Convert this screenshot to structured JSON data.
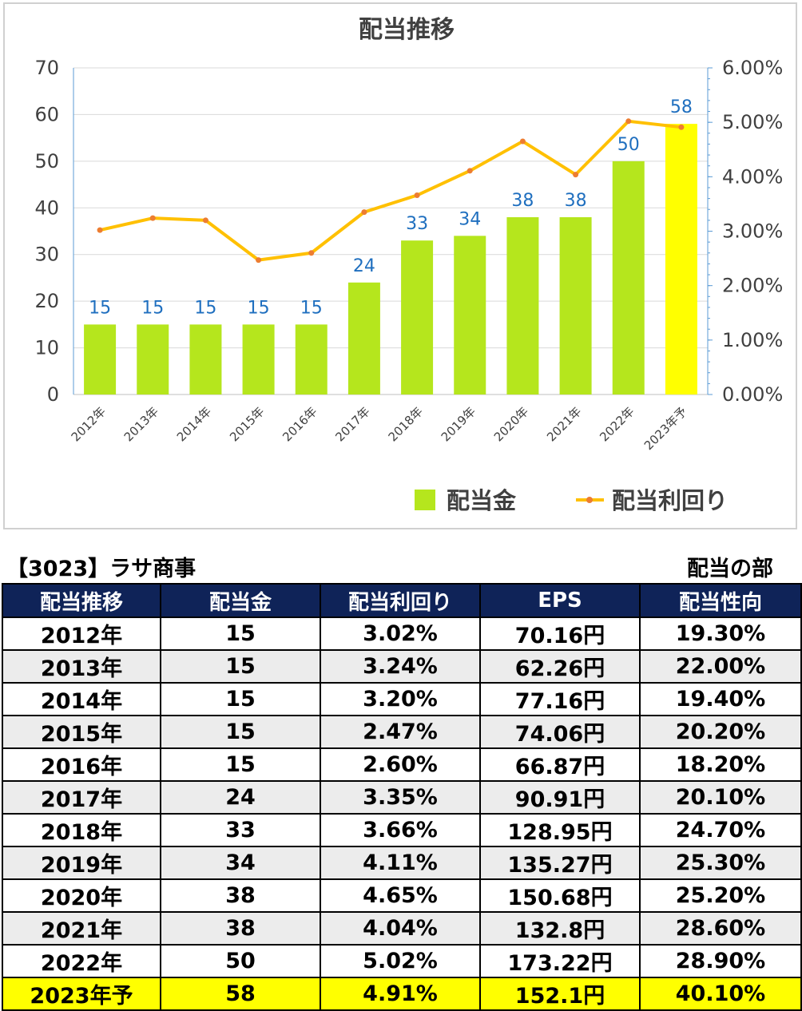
{
  "chart_data": {
    "type": "bar",
    "title": "配当推移",
    "categories": [
      "2012年",
      "2013年",
      "2014年",
      "2015年",
      "2016年",
      "2017年",
      "2018年",
      "2019年",
      "2020年",
      "2021年",
      "2022年",
      "2023年予"
    ],
    "series": [
      {
        "name": "配当金",
        "type": "bar",
        "axis": "left",
        "values": [
          15,
          15,
          15,
          15,
          15,
          24,
          33,
          34,
          38,
          38,
          50,
          58
        ],
        "color": "#b5e61d",
        "highlight_color": "#ffff00"
      },
      {
        "name": "配当利回り",
        "type": "line",
        "axis": "right",
        "values": [
          3.02,
          3.24,
          3.2,
          2.47,
          2.6,
          3.35,
          3.66,
          4.11,
          4.65,
          4.04,
          5.02,
          4.91
        ],
        "color": "#ffc000",
        "marker_color": "#ed7d31"
      }
    ],
    "ylim": [
      0,
      70
    ],
    "yticks": [
      0,
      10,
      20,
      30,
      40,
      50,
      60,
      70
    ],
    "y2lim": [
      0,
      6
    ],
    "y2ticks": [
      "0.00%",
      "1.00%",
      "2.00%",
      "3.00%",
      "4.00%",
      "5.00%",
      "6.00%"
    ],
    "grid": true,
    "legend_position": "bottom-right",
    "data_labels_color": "#1f6fbf",
    "axis_color": "#5b9bd5"
  },
  "table": {
    "company": "【3023】ラサ商事",
    "section": "配当の部",
    "headers": [
      "配当推移",
      "配当金",
      "配当利回り",
      "EPS",
      "配当性向"
    ],
    "rows": [
      [
        "2012年",
        "15",
        "3.02%",
        "70.16円",
        "19.30%"
      ],
      [
        "2013年",
        "15",
        "3.24%",
        "62.26円",
        "22.00%"
      ],
      [
        "2014年",
        "15",
        "3.20%",
        "77.16円",
        "19.40%"
      ],
      [
        "2015年",
        "15",
        "2.47%",
        "74.06円",
        "20.20%"
      ],
      [
        "2016年",
        "15",
        "2.60%",
        "66.87円",
        "18.20%"
      ],
      [
        "2017年",
        "24",
        "3.35%",
        "90.91円",
        "20.10%"
      ],
      [
        "2018年",
        "33",
        "3.66%",
        "128.95円",
        "24.70%"
      ],
      [
        "2019年",
        "34",
        "4.11%",
        "135.27円",
        "25.30%"
      ],
      [
        "2020年",
        "38",
        "4.65%",
        "150.68円",
        "25.20%"
      ],
      [
        "2021年",
        "38",
        "4.04%",
        "132.8円",
        "28.60%"
      ],
      [
        "2022年",
        "50",
        "5.02%",
        "173.22円",
        "28.90%"
      ],
      [
        "2023年予",
        "58",
        "4.91%",
        "152.1円",
        "40.10%"
      ]
    ],
    "header_bg": "#0f2358",
    "stripe_bg": "#ececec",
    "highlight_bg": "#ffff00"
  }
}
